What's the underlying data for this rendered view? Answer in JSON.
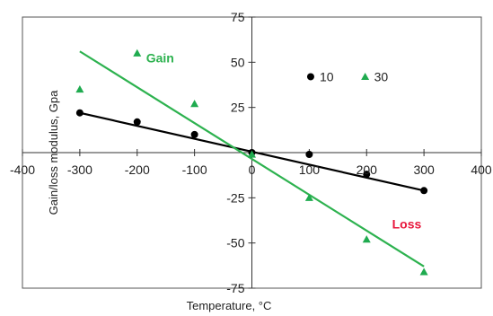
{
  "chart_data": {
    "type": "scatter",
    "title": "",
    "xlabel": "Temperature, ",
    "xlabel_unit": "°C",
    "ylabel": "Gain/loss modulus, Gpa",
    "xlim": [
      -400,
      400
    ],
    "ylim": [
      -75,
      75
    ],
    "xticks": [
      -400,
      -300,
      -200,
      -100,
      0,
      100,
      200,
      300,
      400
    ],
    "yticks": [
      -75,
      -50,
      -25,
      0,
      25,
      50,
      75
    ],
    "x_tick_labels": [
      "-400",
      "-300",
      "-200",
      "-100",
      "0",
      "100",
      "200",
      "300",
      "400"
    ],
    "y_tick_labels": [
      "-75",
      "-50",
      "-25",
      "",
      "25",
      "50",
      "75"
    ],
    "grid": false,
    "legend_position": "top-right",
    "series": [
      {
        "name": "10",
        "marker": "circle",
        "color": "#000000",
        "points": [
          {
            "x": -300,
            "y": 22
          },
          {
            "x": -200,
            "y": 17
          },
          {
            "x": -100,
            "y": 10
          },
          {
            "x": 0,
            "y": 0
          },
          {
            "x": 100,
            "y": -1
          },
          {
            "x": 200,
            "y": -12
          },
          {
            "x": 300,
            "y": -21
          }
        ],
        "fit": {
          "x": [
            -300,
            300
          ],
          "y": [
            22,
            -21
          ],
          "color": "#000000"
        }
      },
      {
        "name": "30",
        "marker": "triangle",
        "color": "#1fab4f",
        "points": [
          {
            "x": -300,
            "y": 35
          },
          {
            "x": -200,
            "y": 55
          },
          {
            "x": -100,
            "y": 27
          },
          {
            "x": 0,
            "y": -1
          },
          {
            "x": 100,
            "y": -25
          },
          {
            "x": 200,
            "y": -48
          },
          {
            "x": 300,
            "y": -66
          }
        ],
        "fit": {
          "x": [
            -300,
            300
          ],
          "y": [
            56,
            -63
          ],
          "color": "#2db24f"
        }
      }
    ],
    "annotations": [
      {
        "text": "Gain",
        "x": -160,
        "y": 50,
        "color": "#2db24f"
      },
      {
        "text": "Loss",
        "x": 270,
        "y": -42,
        "color": "#e8173c"
      }
    ]
  }
}
